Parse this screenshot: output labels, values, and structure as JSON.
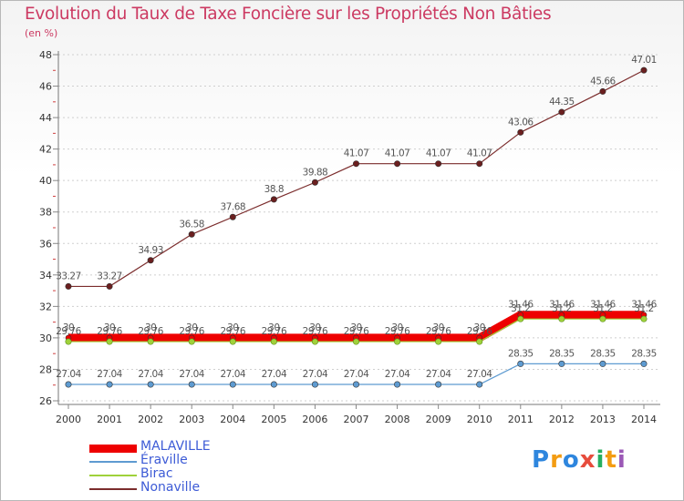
{
  "chart_data": {
    "type": "line",
    "title": "Evolution du Taux de Taxe Foncière sur les Propriétés Non Bâties",
    "subtitle": "(en %)",
    "x": [
      "2000",
      "2001",
      "2002",
      "2003",
      "2004",
      "2005",
      "2006",
      "2007",
      "2008",
      "2009",
      "2010",
      "2011",
      "2012",
      "2013",
      "2014"
    ],
    "ylim": [
      26,
      48
    ],
    "yticks": [
      26,
      28,
      30,
      32,
      34,
      36,
      38,
      40,
      42,
      44,
      46,
      48
    ],
    "grid": "horizontal dashed",
    "legend_position": "bottom-left",
    "series": [
      {
        "name": "MALAVILLE",
        "color": "#ee0000",
        "values": [
          30,
          30,
          30,
          30,
          30,
          30,
          30,
          30,
          30,
          30,
          30,
          31.46,
          31.46,
          31.46,
          31.46
        ],
        "labels": [
          "30",
          "30",
          "30",
          "30",
          "30",
          "30",
          "30",
          "30",
          "30",
          "30",
          "30",
          "31.46",
          "31.46",
          "31.46",
          "31.46"
        ]
      },
      {
        "name": "Éraville",
        "color": "#5e9bd1",
        "values": [
          27.04,
          27.04,
          27.04,
          27.04,
          27.04,
          27.04,
          27.04,
          27.04,
          27.04,
          27.04,
          27.04,
          28.35,
          28.35,
          28.35,
          28.35
        ],
        "labels": [
          "27.04",
          "27.04",
          "27.04",
          "27.04",
          "27.04",
          "27.04",
          "27.04",
          "27.04",
          "27.04",
          "27.04",
          "27.04",
          "28.35",
          "28.35",
          "28.35",
          "28.35"
        ]
      },
      {
        "name": "Birac",
        "color": "#9fd13a",
        "values": [
          29.76,
          29.76,
          29.76,
          29.76,
          29.76,
          29.76,
          29.76,
          29.76,
          29.76,
          29.76,
          29.76,
          31.2,
          31.2,
          31.2,
          31.2
        ],
        "labels": [
          "29.76",
          "29.76",
          "29.76",
          "29.76",
          "29.76",
          "29.76",
          "29.76",
          "29.76",
          "29.76",
          "29.76",
          "29.76",
          "31.2",
          "31.2",
          "31.2",
          "31.2"
        ]
      },
      {
        "name": "Nonaville",
        "color": "#7b2c2c",
        "values": [
          33.27,
          33.27,
          34.93,
          36.58,
          37.68,
          38.8,
          39.88,
          41.07,
          41.07,
          41.07,
          41.07,
          43.06,
          44.35,
          45.66,
          47.01
        ],
        "labels": [
          "33.27",
          "33.27",
          "34.93",
          "36.58",
          "37.68",
          "38.8",
          "39.88",
          "41.07",
          "41.07",
          "41.07",
          "41.07",
          "43.06",
          "44.35",
          "45.66",
          "47.01"
        ]
      }
    ]
  },
  "logo": {
    "letters": [
      "P",
      "r",
      "o",
      "x",
      "i",
      "t",
      "i"
    ],
    "colors": [
      "#2e86de",
      "#f39c12",
      "#2e86de",
      "#e74c3c",
      "#27ae60",
      "#f39c12",
      "#9b59b6"
    ]
  }
}
